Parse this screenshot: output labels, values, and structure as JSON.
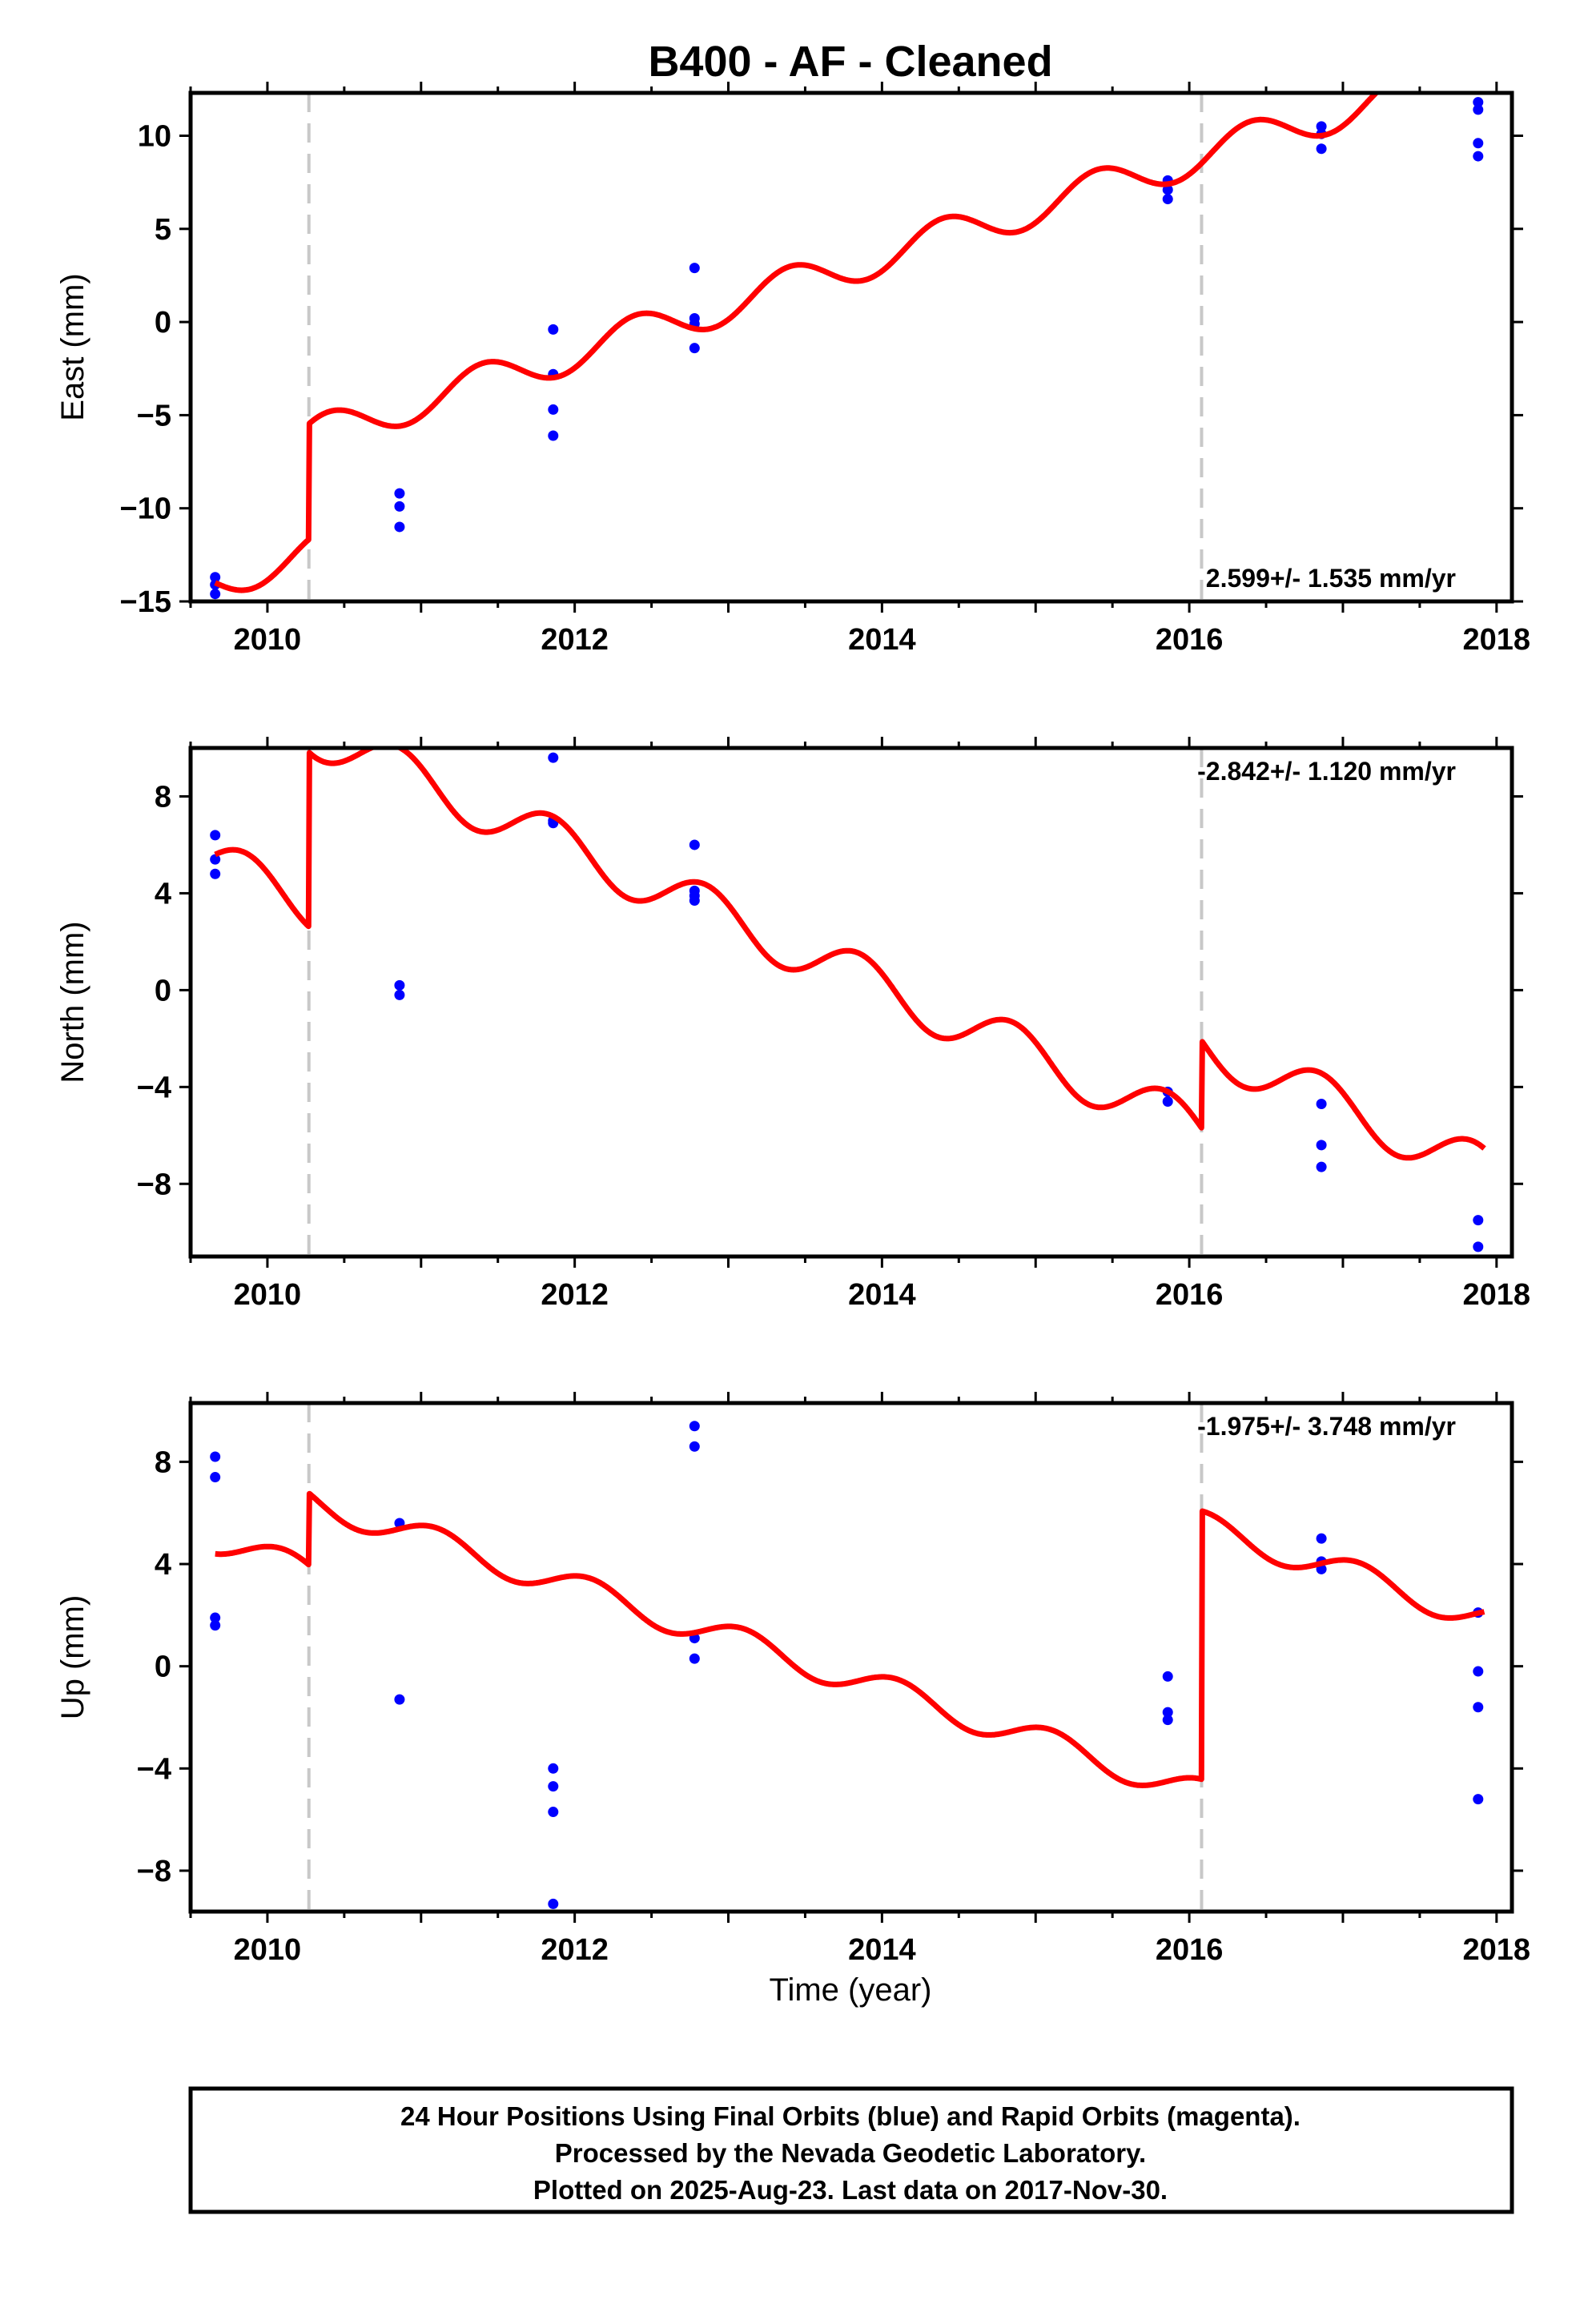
{
  "title": "B400  - AF - Cleaned",
  "xlabel": "Time (year)",
  "footer": [
    "24 Hour Positions Using Final Orbits (blue) and Rapid Orbits (magenta).",
    "Processed by the Nevada Geodetic Laboratory.",
    "Plotted on 2025-Aug-23. Last data on 2017-Nov-30."
  ],
  "colors": {
    "points": "#0000ff",
    "model": "#ff0000",
    "event_lines": "#c8c8c8"
  },
  "chart_data": [
    {
      "type": "scatter",
      "component": "East",
      "ylabel": "East (mm)",
      "rate_label": "2.599+/- 1.535 mm/yr",
      "xlim": [
        2009.5,
        2018.1
      ],
      "ylim": [
        -15,
        12.3
      ],
      "yticks": [
        -15,
        -10,
        -5,
        0,
        5,
        10
      ],
      "xticks": [
        2010,
        2012,
        2014,
        2016,
        2018
      ],
      "event_lines": [
        2010.27,
        2016.08
      ],
      "points": [
        [
          2009.66,
          -13.7
        ],
        [
          2009.66,
          -14.1
        ],
        [
          2009.66,
          -14.6
        ],
        [
          2010.86,
          -9.2
        ],
        [
          2010.86,
          -9.9
        ],
        [
          2010.86,
          -11.0
        ],
        [
          2011.86,
          -0.4
        ],
        [
          2011.86,
          -2.8
        ],
        [
          2011.86,
          -4.7
        ],
        [
          2011.86,
          -6.1
        ],
        [
          2012.78,
          2.9
        ],
        [
          2012.78,
          0.2
        ],
        [
          2012.78,
          -0.1
        ],
        [
          2012.78,
          -1.4
        ],
        [
          2015.86,
          7.6
        ],
        [
          2015.86,
          7.1
        ],
        [
          2015.86,
          6.6
        ],
        [
          2016.86,
          10.5
        ],
        [
          2016.86,
          10.1
        ],
        [
          2016.86,
          9.3
        ],
        [
          2017.88,
          11.8
        ],
        [
          2017.88,
          11.4
        ],
        [
          2017.88,
          9.6
        ],
        [
          2017.88,
          8.9
        ]
      ],
      "model": {
        "t0": 2009.66,
        "t1": 2017.92,
        "start": -14.0,
        "rate": 2.599,
        "amp": 1.0,
        "phase": 0.15,
        "offsets": [
          [
            2010.27,
            6.2
          ],
          [
            2016.08,
            0.0
          ]
        ]
      }
    },
    {
      "type": "scatter",
      "component": "North",
      "ylabel": "North (mm)",
      "rate_label": "-2.842+/- 1.120 mm/yr",
      "xlim": [
        2009.5,
        2018.1
      ],
      "ylim": [
        -11,
        10
      ],
      "yticks": [
        -8,
        -4,
        0,
        4,
        8
      ],
      "xticks": [
        2010,
        2012,
        2014,
        2016,
        2018
      ],
      "event_lines": [
        2010.27,
        2016.08
      ],
      "points": [
        [
          2009.66,
          6.4
        ],
        [
          2009.66,
          5.4
        ],
        [
          2009.66,
          4.8
        ],
        [
          2010.86,
          0.2
        ],
        [
          2010.86,
          -0.2
        ],
        [
          2011.86,
          9.6
        ],
        [
          2011.86,
          7.0
        ],
        [
          2011.86,
          6.9
        ],
        [
          2012.78,
          6.0
        ],
        [
          2012.78,
          4.1
        ],
        [
          2012.78,
          3.9
        ],
        [
          2012.78,
          3.7
        ],
        [
          2015.86,
          -4.2
        ],
        [
          2015.86,
          -4.6
        ],
        [
          2016.86,
          -4.7
        ],
        [
          2016.86,
          -6.4
        ],
        [
          2016.86,
          -7.3
        ],
        [
          2017.88,
          -9.5
        ],
        [
          2017.88,
          -10.6
        ]
      ],
      "model": {
        "t0": 2009.66,
        "t1": 2017.92,
        "start": 5.6,
        "rate": -2.842,
        "amp": 1.0,
        "phase": 0.6,
        "offsets": [
          [
            2010.27,
            7.2
          ],
          [
            2016.08,
            3.6
          ]
        ]
      }
    },
    {
      "type": "scatter",
      "component": "Up",
      "ylabel": "Up (mm)",
      "rate_label": "-1.975+/- 3.748 mm/yr",
      "xlim": [
        2009.5,
        2018.1
      ],
      "ylim": [
        -9.6,
        10.3
      ],
      "yticks": [
        -8,
        -4,
        0,
        4,
        8
      ],
      "xticks": [
        2010,
        2012,
        2014,
        2016,
        2018
      ],
      "event_lines": [
        2010.27,
        2016.08
      ],
      "points": [
        [
          2009.66,
          8.2
        ],
        [
          2009.66,
          7.4
        ],
        [
          2009.66,
          1.9
        ],
        [
          2009.66,
          1.6
        ],
        [
          2010.86,
          5.6
        ],
        [
          2010.86,
          -1.3
        ],
        [
          2011.86,
          -4.0
        ],
        [
          2011.86,
          -4.7
        ],
        [
          2011.86,
          -5.7
        ],
        [
          2011.86,
          -9.3
        ],
        [
          2012.78,
          9.4
        ],
        [
          2012.78,
          8.6
        ],
        [
          2012.78,
          1.1
        ],
        [
          2012.78,
          0.3
        ],
        [
          2015.86,
          -0.4
        ],
        [
          2015.86,
          -1.8
        ],
        [
          2015.86,
          -2.1
        ],
        [
          2016.86,
          5.0
        ],
        [
          2016.86,
          4.1
        ],
        [
          2016.86,
          3.8
        ],
        [
          2017.88,
          2.1
        ],
        [
          2017.88,
          -0.2
        ],
        [
          2017.88,
          -1.6
        ],
        [
          2017.88,
          -5.2
        ]
      ],
      "model": {
        "t0": 2009.66,
        "t1": 2017.92,
        "start": 4.4,
        "rate": -1.975,
        "amp": 0.55,
        "phase": 0.85,
        "offsets": [
          [
            2010.27,
            2.8
          ],
          [
            2016.08,
            10.5
          ]
        ]
      }
    }
  ]
}
